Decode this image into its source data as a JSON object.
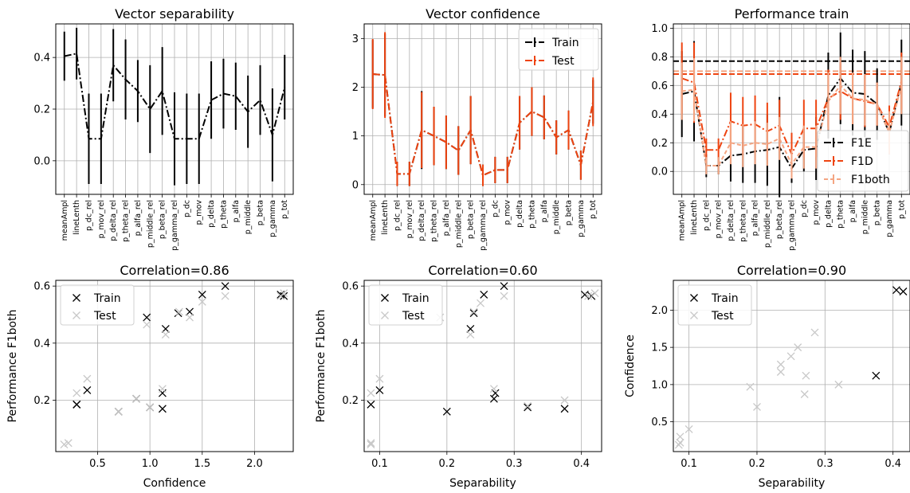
{
  "categories": [
    "meanAmpl",
    "lineLenth",
    "p_dc_rel",
    "p_mov_rel",
    "p_delta_rel",
    "p_theta_rel",
    "p_alfa_rel",
    "p_middle_rel",
    "p_beta_rel",
    "p_gamma_rel",
    "p_dc",
    "p_mov",
    "p_delta",
    "p_theta",
    "p_alfa",
    "p_middle",
    "p_beta",
    "p_gamma",
    "p_tot"
  ],
  "chart_data": [
    {
      "type": "line",
      "title": "Vector separability",
      "xlabel": "",
      "ylabel": "",
      "ylim": [
        -0.13,
        0.53
      ],
      "yticks": [
        0.0,
        0.2,
        0.4
      ],
      "grid": true,
      "series": [
        {
          "values": [
            0.405,
            0.415,
            0.085,
            0.085,
            0.37,
            0.315,
            0.27,
            0.2,
            0.27,
            0.085,
            0.085,
            0.085,
            0.235,
            0.26,
            0.25,
            0.19,
            0.235,
            0.1,
            0.285
          ],
          "errors": [
            0.095,
            0.1,
            0.175,
            0.175,
            0.14,
            0.155,
            0.12,
            0.17,
            0.17,
            0.18,
            0.175,
            0.175,
            0.15,
            0.135,
            0.13,
            0.14,
            0.135,
            0.18,
            0.125
          ],
          "color": "#000000"
        }
      ]
    },
    {
      "type": "line",
      "title": "Vector confidence",
      "xlabel": "",
      "ylabel": "",
      "ylim": [
        -0.2,
        3.3
      ],
      "yticks": [
        0,
        1,
        2,
        3
      ],
      "grid": true,
      "legend": "upper right",
      "series": [
        {
          "name": "Train",
          "color": "#000000",
          "values": [
            2.27,
            2.25,
            0.22,
            0.22,
            1.12,
            1.0,
            0.87,
            0.7,
            1.12,
            0.19,
            0.3,
            0.3,
            1.27,
            1.5,
            1.38,
            0.97,
            1.12,
            0.4,
            1.7
          ],
          "errors": [
            0.7,
            0.85,
            0.25,
            0.25,
            0.8,
            0.6,
            0.55,
            0.5,
            0.7,
            0.22,
            0.27,
            0.27,
            0.55,
            0.5,
            0.45,
            0.35,
            0.4,
            0.3,
            0.45
          ]
        },
        {
          "name": "Test",
          "color": "#ee4411",
          "values": [
            2.27,
            2.25,
            0.22,
            0.22,
            1.12,
            1.0,
            0.87,
            0.7,
            1.12,
            0.19,
            0.3,
            0.3,
            1.27,
            1.5,
            1.38,
            0.97,
            1.12,
            0.4,
            1.7
          ],
          "errors": [
            0.72,
            0.88,
            0.25,
            0.25,
            0.78,
            0.6,
            0.55,
            0.5,
            0.7,
            0.22,
            0.27,
            0.27,
            0.55,
            0.5,
            0.45,
            0.35,
            0.4,
            0.3,
            0.5
          ]
        }
      ]
    },
    {
      "type": "line",
      "title": "Performance train",
      "xlabel": "",
      "ylabel": "",
      "ylim": [
        -0.16,
        1.03
      ],
      "yticks": [
        0.0,
        0.2,
        0.4,
        0.6,
        0.8,
        1.0
      ],
      "grid": true,
      "legend": "lower right",
      "hlines": [
        {
          "y": 0.77,
          "color": "#000000"
        },
        {
          "y": 0.68,
          "color": "#ee4411"
        },
        {
          "y": 0.7,
          "color": "#f4a582"
        }
      ],
      "series": [
        {
          "name": "F1E",
          "color": "#000000",
          "values": [
            0.54,
            0.56,
            0.04,
            0.04,
            0.11,
            0.12,
            0.14,
            0.15,
            0.17,
            0.02,
            0.15,
            0.16,
            0.53,
            0.65,
            0.55,
            0.54,
            0.47,
            0.27,
            0.62
          ],
          "errors": [
            0.3,
            0.35,
            0.08,
            0.06,
            0.18,
            0.2,
            0.22,
            0.25,
            0.35,
            0.1,
            0.15,
            0.22,
            0.3,
            0.32,
            0.3,
            0.3,
            0.25,
            0.15,
            0.3
          ]
        },
        {
          "name": "F1D",
          "color": "#ee4411",
          "values": [
            0.65,
            0.62,
            0.15,
            0.15,
            0.35,
            0.32,
            0.33,
            0.28,
            0.32,
            0.12,
            0.3,
            0.3,
            0.51,
            0.56,
            0.51,
            0.49,
            0.47,
            0.31,
            0.63
          ],
          "errors": [
            0.25,
            0.28,
            0.08,
            0.08,
            0.2,
            0.2,
            0.2,
            0.2,
            0.18,
            0.15,
            0.2,
            0.2,
            0.2,
            0.2,
            0.18,
            0.18,
            0.15,
            0.15,
            0.2
          ]
        },
        {
          "name": "F1both",
          "color": "#f4a582",
          "values": [
            0.56,
            0.57,
            0.04,
            0.04,
            0.2,
            0.18,
            0.2,
            0.19,
            0.23,
            0.05,
            0.17,
            0.17,
            0.49,
            0.6,
            0.51,
            0.5,
            0.47,
            0.27,
            0.6
          ],
          "errors": [
            0.2,
            0.22,
            0.06,
            0.06,
            0.15,
            0.15,
            0.15,
            0.15,
            0.15,
            0.1,
            0.15,
            0.15,
            0.2,
            0.2,
            0.18,
            0.18,
            0.15,
            0.15,
            0.2
          ]
        }
      ]
    },
    {
      "type": "scatter",
      "title": "Correlation=0.86",
      "xlabel": "Confidence",
      "ylabel": "Performance F1both",
      "xlim": [
        0.1,
        2.37
      ],
      "ylim": [
        0.02,
        0.62
      ],
      "xticks": [
        0.5,
        1.0,
        1.5,
        2.0
      ],
      "yticks": [
        0.2,
        0.4,
        0.6
      ],
      "grid": true,
      "legend": "upper left",
      "series": [
        {
          "name": "Train",
          "color": "#000000",
          "points": [
            [
              0.3,
              0.185
            ],
            [
              0.3,
              0.185
            ],
            [
              0.4,
              0.235
            ],
            [
              0.7,
              0.16
            ],
            [
              0.87,
              0.205
            ],
            [
              0.97,
              0.49
            ],
            [
              1.0,
              0.175
            ],
            [
              1.12,
              0.17
            ],
            [
              1.12,
              0.225
            ],
            [
              1.15,
              0.45
            ],
            [
              1.27,
              0.505
            ],
            [
              1.38,
              0.51
            ],
            [
              1.5,
              0.57
            ],
            [
              1.72,
              0.6
            ],
            [
              2.25,
              0.57
            ],
            [
              2.28,
              0.565
            ]
          ]
        },
        {
          "name": "Test",
          "color": "#c8c8c8",
          "points": [
            [
              0.18,
              0.045
            ],
            [
              0.22,
              0.05
            ],
            [
              0.3,
              0.225
            ],
            [
              0.4,
              0.275
            ],
            [
              0.7,
              0.16
            ],
            [
              0.87,
              0.205
            ],
            [
              0.97,
              0.465
            ],
            [
              1.0,
              0.175
            ],
            [
              1.12,
              0.24
            ],
            [
              1.15,
              0.43
            ],
            [
              1.28,
              0.51
            ],
            [
              1.38,
              0.49
            ],
            [
              1.5,
              0.545
            ],
            [
              1.72,
              0.565
            ],
            [
              2.25,
              0.565
            ],
            [
              2.28,
              0.575
            ]
          ]
        }
      ]
    },
    {
      "type": "scatter",
      "title": "Correlation=0.60",
      "xlabel": "Separability",
      "ylabel": "Performance F1both",
      "xlim": [
        0.077,
        0.43
      ],
      "ylim": [
        0.02,
        0.62
      ],
      "xticks": [
        0.1,
        0.2,
        0.3,
        0.4
      ],
      "yticks": [
        0.2,
        0.4,
        0.6
      ],
      "grid": true,
      "legend": "upper left",
      "series": [
        {
          "name": "Train",
          "color": "#000000",
          "points": [
            [
              0.087,
              0.185
            ],
            [
              0.1,
              0.235
            ],
            [
              0.2,
              0.16
            ],
            [
              0.235,
              0.45
            ],
            [
              0.24,
              0.505
            ],
            [
              0.255,
              0.57
            ],
            [
              0.27,
              0.205
            ],
            [
              0.272,
              0.225
            ],
            [
              0.285,
              0.6
            ],
            [
              0.32,
              0.175
            ],
            [
              0.375,
              0.17
            ],
            [
              0.405,
              0.57
            ],
            [
              0.415,
              0.565
            ]
          ]
        },
        {
          "name": "Test",
          "color": "#c8c8c8",
          "points": [
            [
              0.087,
              0.045
            ],
            [
              0.087,
              0.05
            ],
            [
              0.087,
              0.225
            ],
            [
              0.1,
              0.275
            ],
            [
              0.19,
              0.49
            ],
            [
              0.235,
              0.43
            ],
            [
              0.24,
              0.51
            ],
            [
              0.25,
              0.54
            ],
            [
              0.27,
              0.24
            ],
            [
              0.285,
              0.565
            ],
            [
              0.32,
              0.18
            ],
            [
              0.375,
              0.2
            ],
            [
              0.41,
              0.565
            ],
            [
              0.42,
              0.575
            ]
          ]
        }
      ]
    },
    {
      "type": "scatter",
      "title": "Correlation=0.90",
      "xlabel": "Separability",
      "ylabel": "Confidence",
      "xlim": [
        0.077,
        0.425
      ],
      "ylim": [
        0.1,
        2.4
      ],
      "xticks": [
        0.1,
        0.2,
        0.3,
        0.4
      ],
      "yticks": [
        0.5,
        1.0,
        1.5,
        2.0
      ],
      "grid": true,
      "legend": "upper left",
      "series": [
        {
          "name": "Train",
          "color": "#000000",
          "points": [
            [
              0.375,
              1.12
            ],
            [
              0.405,
              2.27
            ],
            [
              0.415,
              2.25
            ]
          ]
        },
        {
          "name": "Test",
          "color": "#c8c8c8",
          "points": [
            [
              0.085,
              0.19
            ],
            [
              0.087,
              0.22
            ],
            [
              0.087,
              0.3
            ],
            [
              0.1,
              0.4
            ],
            [
              0.19,
              0.97
            ],
            [
              0.2,
              0.7
            ],
            [
              0.235,
              1.27
            ],
            [
              0.235,
              1.17
            ],
            [
              0.25,
              1.38
            ],
            [
              0.26,
              1.5
            ],
            [
              0.27,
              0.87
            ],
            [
              0.272,
              1.12
            ],
            [
              0.285,
              1.7
            ],
            [
              0.32,
              1.0
            ]
          ]
        }
      ]
    }
  ]
}
